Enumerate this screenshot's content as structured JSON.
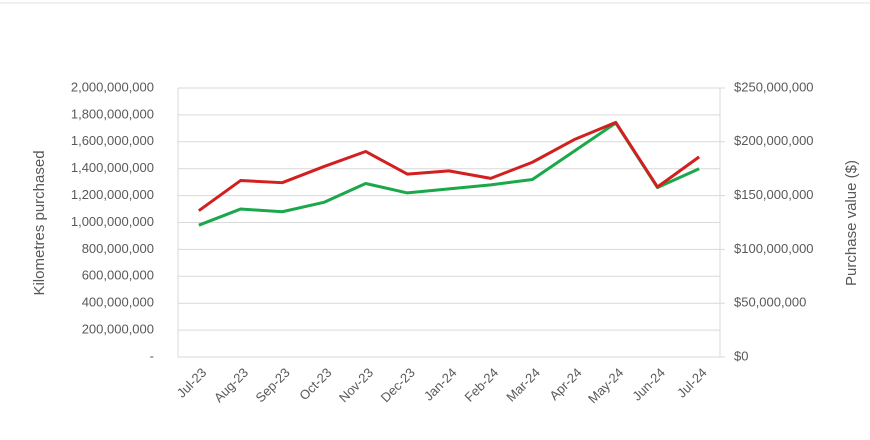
{
  "chart_data": {
    "type": "line",
    "y_label": "Kilometres purchased",
    "y2_label": "Purchase value ($)",
    "categories": [
      "Jul-23",
      "Aug-23",
      "Sep-23",
      "Oct-23",
      "Nov-23",
      "Dec-23",
      "Jan-24",
      "Feb-24",
      "Mar-24",
      "Apr-24",
      "May-24",
      "Jun-24",
      "Jul-24"
    ],
    "series": [
      {
        "color": "#1aa84b",
        "values": [
          980000000,
          1100000000,
          1080000000,
          1150000000,
          1290000000,
          1220000000,
          1250000000,
          1280000000,
          1320000000,
          1530000000,
          1740000000,
          1260000000,
          1400000000
        ]
      },
      {
        "color": "#d21f1f",
        "axis": "y2",
        "values": [
          136000000,
          164000000,
          162000000,
          177000000,
          191000000,
          170000000,
          173000000,
          166000000,
          181000000,
          202000000,
          218000000,
          158000000,
          186000000
        ]
      }
    ],
    "ylim": [
      0,
      2000000000
    ],
    "yticks": [
      {
        "value": 0,
        "label": "-"
      },
      {
        "value": 200000000,
        "label": "200,000,000"
      },
      {
        "value": 400000000,
        "label": "400,000,000"
      },
      {
        "value": 600000000,
        "label": "600,000,000"
      },
      {
        "value": 800000000,
        "label": "800,000,000"
      },
      {
        "value": 1000000000,
        "label": "1,000,000,000"
      },
      {
        "value": 1200000000,
        "label": "1,200,000,000"
      },
      {
        "value": 1400000000,
        "label": "1,400,000,000"
      },
      {
        "value": 1600000000,
        "label": "1,600,000,000"
      },
      {
        "value": 1800000000,
        "label": "1,800,000,000"
      },
      {
        "value": 2000000000,
        "label": "2,000,000,000"
      }
    ],
    "y2lim": [
      0,
      250000000
    ],
    "y2ticks": [
      {
        "value": 0,
        "label": "$0"
      },
      {
        "value": 50000000,
        "label": "$50,000,000"
      },
      {
        "value": 100000000,
        "label": "$100,000,000"
      },
      {
        "value": 150000000,
        "label": "$150,000,000"
      },
      {
        "value": 200000000,
        "label": "$200,000,000"
      },
      {
        "value": 250000000,
        "label": "$250,000,000"
      }
    ],
    "grid": true
  }
}
